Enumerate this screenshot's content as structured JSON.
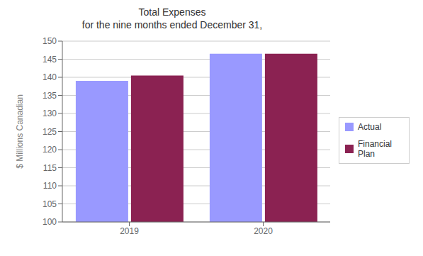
{
  "chart_data": {
    "type": "bar",
    "title": "Total Expenses\nfor the nine months ended December 31,",
    "ylabel": "$ Millions Canadian",
    "categories": [
      "2019",
      "2020"
    ],
    "series": [
      {
        "name": "Actual",
        "color": "#9999FF",
        "values": [
          139.0,
          146.5
        ]
      },
      {
        "name": "Financial\nPlan",
        "color": "#8B2252",
        "values": [
          140.5,
          146.5
        ]
      }
    ],
    "ylim": [
      100,
      150
    ],
    "yticks": [
      100,
      105,
      110,
      115,
      120,
      125,
      130,
      135,
      140,
      145,
      150
    ],
    "grid": true,
    "legend": "right"
  }
}
